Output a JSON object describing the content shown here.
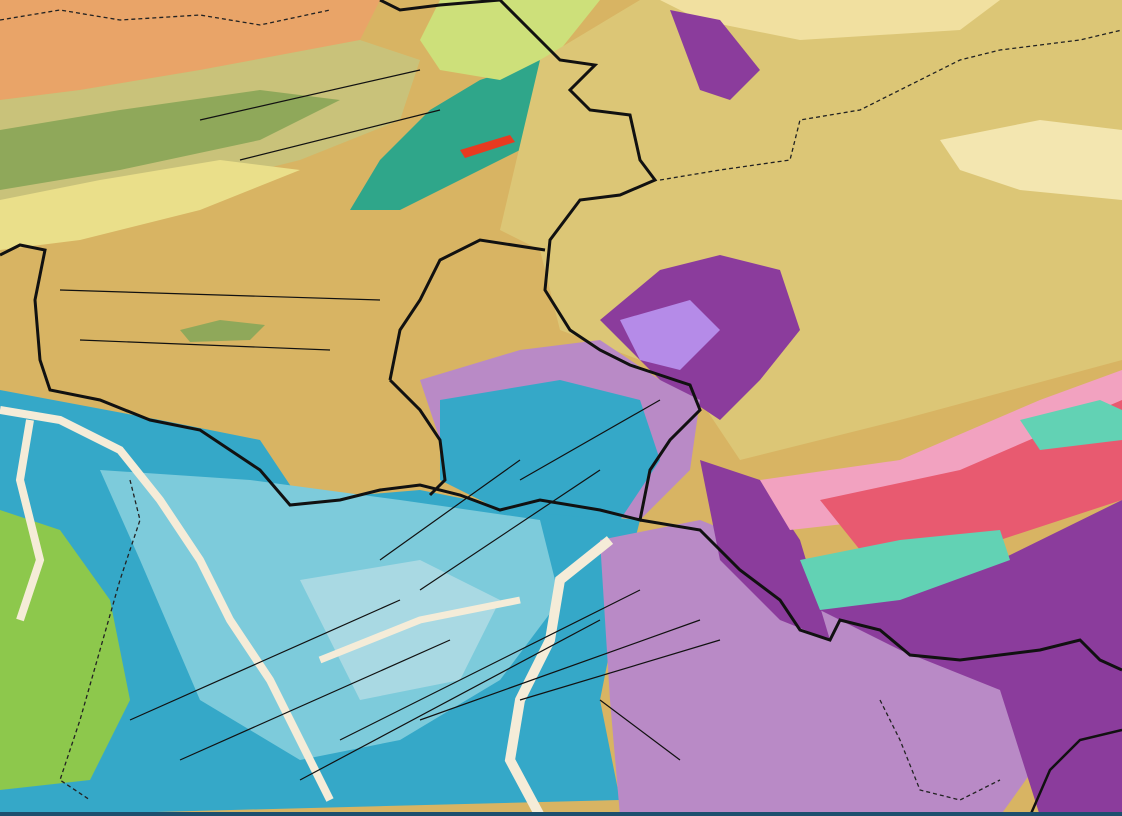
{
  "map": {
    "type": "geological map",
    "colors": {
      "base_tan": "#d8b463",
      "khaki": "#dcc676",
      "orange": "#e9a468",
      "olive_green": "#8fa85a",
      "teal_green": "#2fa68a",
      "pale_yellow": "#eadf8a",
      "blue": "#35a8c8",
      "light_blue": "#7dcbdb",
      "pale_blue": "#a9d9e3",
      "green": "#8dc84c",
      "lilac": "#b98ac6",
      "purple": "#8b3c9c",
      "violet": "#b58be8",
      "red_pink": "#e85a70",
      "pink": "#f2a2c0",
      "mint": "#62d2b4",
      "cream_river": "#f5ecd8",
      "boundary": "#111111",
      "bottom_bar": "#1d4f6e"
    },
    "icons": []
  }
}
